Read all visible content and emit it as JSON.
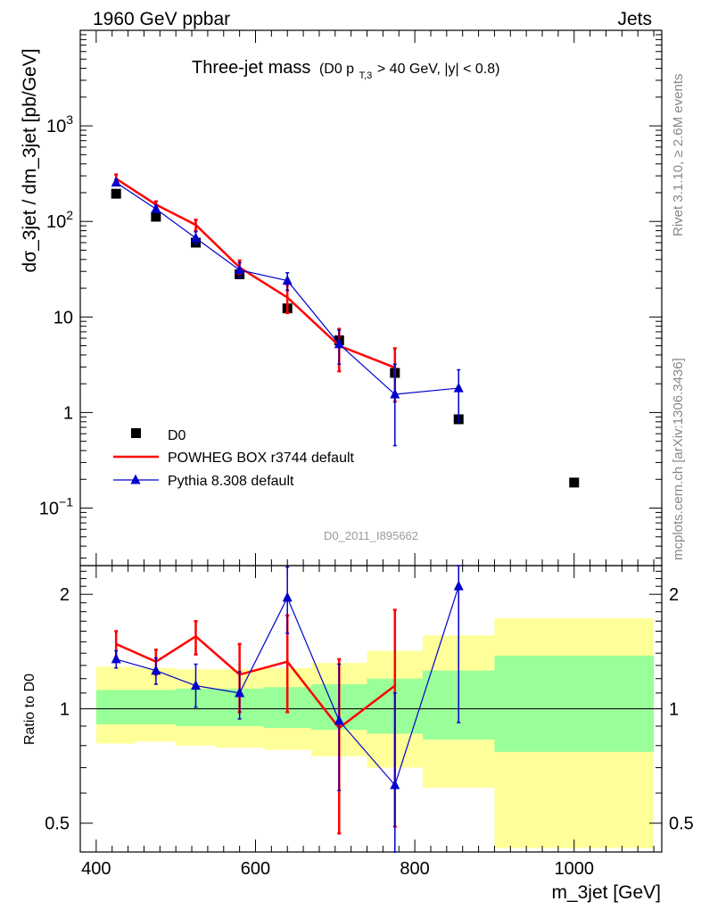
{
  "header": {
    "left": "1960 GeV ppbar",
    "right": "Jets"
  },
  "side": {
    "rivet": "Rivet 3.1.10, ≥ 2.6M events",
    "mcplots": "mcplots.cern.ch [arXiv:1306.3436]"
  },
  "title": {
    "main": "Three-jet mass",
    "cut_prefix": "(D0 p",
    "cut_sub": "T,3",
    "cut_suffix": " > 40 GeV, |y| < 0.8)"
  },
  "watermark": "D0_2011_I895662",
  "colors": {
    "data": "#000000",
    "powheg": "#ff0000",
    "pythia": "#0000cc",
    "band_outer": "#ffff99",
    "band_inner": "#99ff99"
  },
  "chart_data": [
    {
      "type": "line",
      "panel": "main",
      "ylabel": "dσ_3jet / dm_3jet [pb/GeV]",
      "xlim": [
        380,
        1110
      ],
      "ylim": [
        0.025,
        10000
      ],
      "yscale": "log",
      "yticks": [
        {
          "v": 0.1,
          "base": "10",
          "exp": "−1"
        },
        {
          "v": 1,
          "base": "1",
          "exp": ""
        },
        {
          "v": 10,
          "base": "10",
          "exp": ""
        },
        {
          "v": 100,
          "base": "10",
          "exp": "2"
        },
        {
          "v": 1000,
          "base": "10",
          "exp": "3"
        }
      ],
      "legend": {
        "position": "bottom-left",
        "entries": [
          "D0",
          "POWHEG BOX r3744 default",
          "Pythia 8.308 default"
        ]
      },
      "series": [
        {
          "name": "D0",
          "style": "square",
          "x": [
            425,
            475,
            525,
            580,
            640,
            705,
            775,
            855,
            1000
          ],
          "y": [
            195,
            112,
            60,
            28,
            12.3,
            5.7,
            2.6,
            0.85,
            0.185
          ],
          "ylo": [
            195,
            112,
            60,
            28,
            12.3,
            5.7,
            2.6,
            0.85,
            0.185
          ],
          "yhi": [
            195,
            112,
            60,
            28,
            12.3,
            5.7,
            2.6,
            0.85,
            0.185
          ]
        },
        {
          "name": "POWHEG BOX r3744 default",
          "style": "line",
          "x": [
            425,
            475,
            525,
            580,
            640,
            705,
            775
          ],
          "y": [
            280,
            150,
            92,
            33,
            16,
            5.0,
            2.95
          ],
          "ylo": [
            255,
            138,
            80,
            28,
            11,
            2.7,
            1.3
          ],
          "yhi": [
            310,
            162,
            104,
            39,
            22,
            7.5,
            4.7
          ]
        },
        {
          "name": "Pythia 8.308 default",
          "style": "triangle",
          "x": [
            425,
            475,
            525,
            580,
            640,
            705,
            775,
            855
          ],
          "y": [
            255,
            135,
            67,
            31,
            24,
            5.2,
            1.55,
            1.8
          ],
          "ylo": [
            240,
            125,
            58,
            26,
            19,
            3.2,
            0.45,
            0.8
          ],
          "yhi": [
            275,
            148,
            78,
            37,
            29,
            7.3,
            3.2,
            2.8
          ]
        }
      ]
    },
    {
      "type": "line",
      "panel": "ratio",
      "ylabel": "Ratio to D0",
      "xlabel": "m_3jet [GeV]",
      "xlim": [
        380,
        1110
      ],
      "ylim": [
        0.42,
        2.38
      ],
      "yscale": "log",
      "xticks": [
        400,
        600,
        800,
        1000
      ],
      "yticks": [
        0.5,
        1,
        2
      ],
      "bands": [
        {
          "x0": 400,
          "x1": 450,
          "outer": [
            0.81,
            1.29
          ],
          "inner": [
            0.91,
            1.12
          ]
        },
        {
          "x0": 450,
          "x1": 500,
          "outer": [
            0.82,
            1.28
          ],
          "inner": [
            0.91,
            1.12
          ]
        },
        {
          "x0": 500,
          "x1": 550,
          "outer": [
            0.8,
            1.27
          ],
          "inner": [
            0.9,
            1.13
          ]
        },
        {
          "x0": 550,
          "x1": 610,
          "outer": [
            0.79,
            1.27
          ],
          "inner": [
            0.9,
            1.13
          ]
        },
        {
          "x0": 610,
          "x1": 670,
          "outer": [
            0.78,
            1.28
          ],
          "inner": [
            0.89,
            1.14
          ]
        },
        {
          "x0": 670,
          "x1": 740,
          "outer": [
            0.75,
            1.32
          ],
          "inner": [
            0.88,
            1.16
          ]
        },
        {
          "x0": 740,
          "x1": 810,
          "outer": [
            0.7,
            1.42
          ],
          "inner": [
            0.86,
            1.2
          ]
        },
        {
          "x0": 810,
          "x1": 900,
          "outer": [
            0.62,
            1.56
          ],
          "inner": [
            0.83,
            1.26
          ]
        },
        {
          "x0": 900,
          "x1": 1100,
          "outer": [
            0.43,
            1.73
          ],
          "inner": [
            0.77,
            1.38
          ]
        }
      ],
      "series": [
        {
          "name": "POWHEG BOX r3744 default",
          "style": "line",
          "x": [
            425,
            475,
            525,
            580,
            640,
            705,
            775
          ],
          "y": [
            1.48,
            1.33,
            1.55,
            1.23,
            1.33,
            0.89,
            1.15
          ],
          "ylo": [
            1.37,
            1.23,
            1.39,
            0.98,
            0.98,
            0.47,
            0.49
          ],
          "yhi": [
            1.6,
            1.43,
            1.7,
            1.48,
            1.76,
            1.35,
            1.82
          ]
        },
        {
          "name": "Pythia 8.308 default",
          "style": "triangle",
          "x": [
            425,
            475,
            525,
            580,
            640,
            705,
            775,
            855
          ],
          "y": [
            1.35,
            1.26,
            1.15,
            1.1,
            1.96,
            0.93,
            0.63,
            2.1
          ],
          "ylo": [
            1.28,
            1.16,
            1.01,
            0.94,
            1.58,
            0.61,
            0.3,
            0.92
          ],
          "yhi": [
            1.42,
            1.36,
            1.31,
            1.25,
            2.36,
            1.31,
            1.1,
            2.4
          ]
        }
      ]
    }
  ]
}
